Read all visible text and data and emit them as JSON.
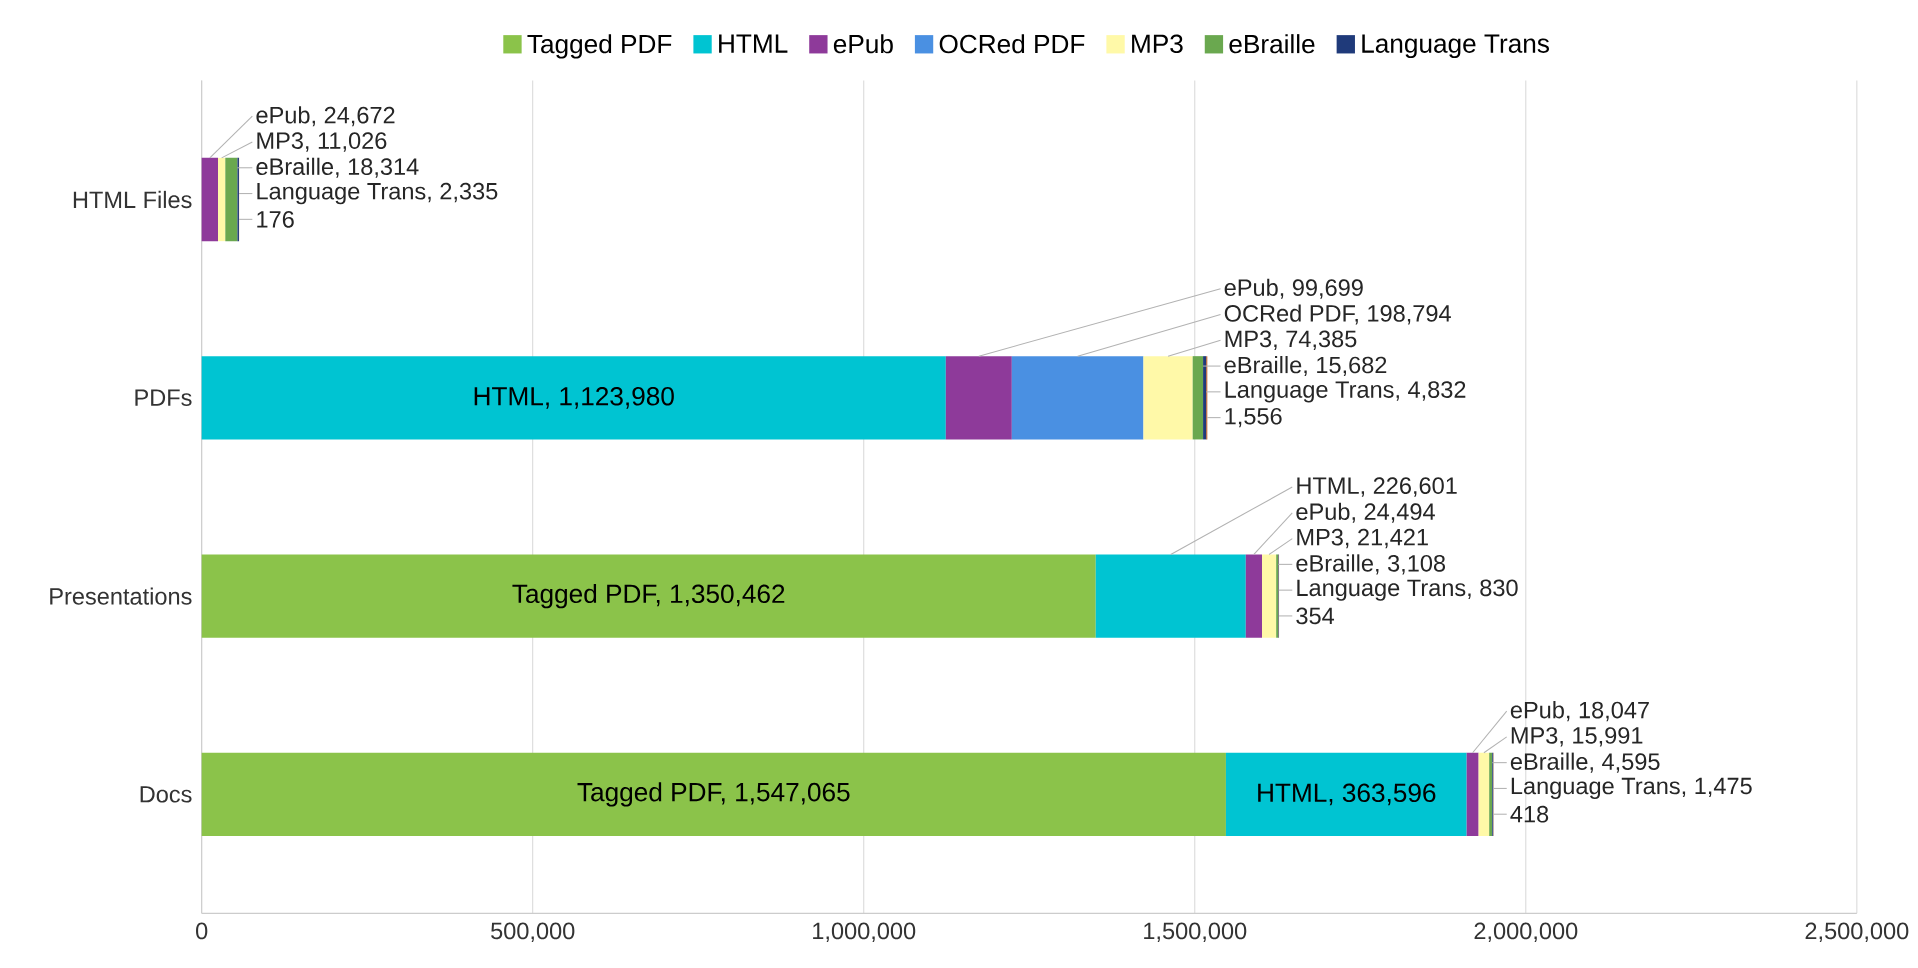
{
  "chart_data": {
    "type": "bar",
    "orientation": "horizontal",
    "stacked": true,
    "legend": "top",
    "grid": "x",
    "categories": [
      "HTML Files",
      "PDFs",
      "Presentations",
      "Docs"
    ],
    "xlim": [
      0,
      2500000
    ],
    "xticks": [
      0,
      {
        "value": 500000,
        "label": "500,000"
      },
      {
        "value": 1000000,
        "label": "1,000,000"
      },
      {
        "value": 1500000,
        "label": "1,500,000"
      },
      {
        "value": 2000000,
        "label": "2,000,000"
      },
      {
        "value": 2500000,
        "label": "2,500,000"
      }
    ],
    "series": [
      {
        "name": "Tagged PDF",
        "color": "#8bc34a",
        "values": [
          null,
          null,
          1350462,
          1547065
        ],
        "value_labels": [
          null,
          null,
          "Tagged PDF, 1,350,462",
          "Tagged PDF, 1,547,065"
        ]
      },
      {
        "name": "HTML",
        "color": "#00c4d2",
        "values": [
          null,
          1123980,
          226601,
          363596
        ],
        "value_labels": [
          null,
          "HTML, 1,123,980",
          "HTML, 226,601",
          "HTML, 363,596"
        ]
      },
      {
        "name": "ePub",
        "color": "#8e3a9a",
        "values": [
          24672,
          99699,
          24494,
          18047
        ],
        "value_labels": [
          "ePub, 24,672",
          "ePub, 99,699",
          "ePub, 24,494",
          "ePub, 18,047"
        ]
      },
      {
        "name": "OCRed PDF",
        "color": "#4a90e2",
        "values": [
          null,
          198794,
          null,
          null
        ],
        "value_labels": [
          null,
          "OCRed PDF, 198,794",
          null,
          null
        ]
      },
      {
        "name": "MP3",
        "color": "#fff9a8",
        "values": [
          11026,
          74385,
          21421,
          15991
        ],
        "value_labels": [
          "MP3, 11,026",
          "MP3, 74,385",
          "MP3, 21,421",
          "MP3, 15,991"
        ]
      },
      {
        "name": "eBraille",
        "color": "#6aa84f",
        "values": [
          18314,
          15682,
          3108,
          4595
        ],
        "value_labels": [
          "eBraille, 18,314",
          "eBraille, 15,682",
          "eBraille, 3,108",
          "eBraille, 4,595"
        ]
      },
      {
        "name": "Language Trans",
        "color": "#1f3a7a",
        "values": [
          2335,
          4832,
          830,
          1475
        ],
        "value_labels": [
          "Language Trans, 2,335",
          "Language Trans, 4,832",
          "Language Trans, 830",
          "Language Trans, 1,475"
        ]
      },
      {
        "color": "#b5541b",
        "values": [
          176,
          1556,
          354,
          418
        ],
        "value_labels": [
          "176",
          "1,556",
          "354",
          "418"
        ]
      }
    ]
  }
}
